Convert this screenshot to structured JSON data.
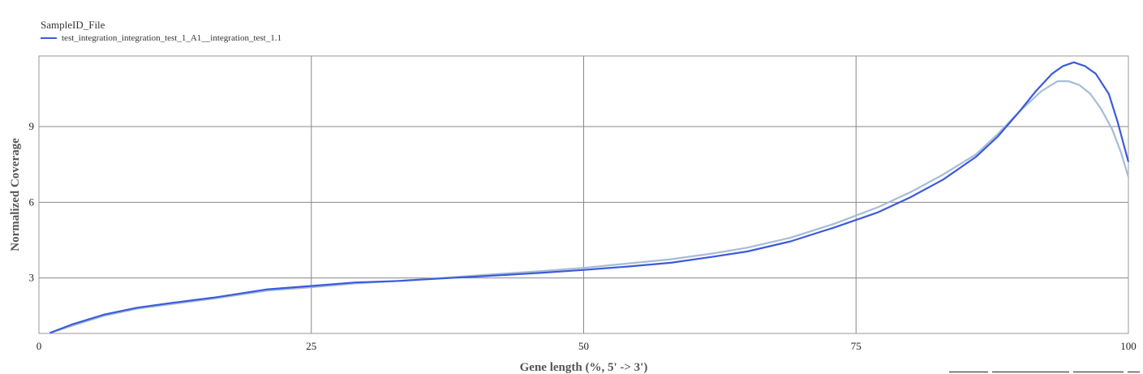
{
  "legend": {
    "title": "SampleID_File",
    "entries": [
      {
        "label": "test_integration_integration_test_1_A1__integration_test_1.1",
        "color": "#3b5bdb"
      }
    ]
  },
  "chart_data": {
    "type": "line",
    "title": "",
    "xlabel": "Gene length (%, 5' -> 3')",
    "ylabel": "Normalized Coverage",
    "xlim": [
      0,
      100
    ],
    "ylim": [
      0.8,
      11.8
    ],
    "xticks": [
      0,
      25,
      50,
      75,
      100
    ],
    "yticks": [
      3,
      6,
      9
    ],
    "grid": true,
    "legend_position": "top-left",
    "series": [
      {
        "name": "test_integration_integration_test_1_A1__integration_test_1.1",
        "color": "#3b5bdb",
        "x": [
          1,
          3,
          6,
          9,
          12,
          16,
          21,
          25,
          29,
          33,
          37,
          42,
          46,
          50,
          54,
          58,
          62,
          65,
          69,
          73,
          77,
          80,
          83,
          86,
          88,
          90,
          91.5,
          93,
          94,
          95,
          96,
          97,
          98.2,
          99,
          100
        ],
        "y": [
          0.82,
          1.15,
          1.55,
          1.82,
          2.0,
          2.22,
          2.55,
          2.68,
          2.82,
          2.88,
          2.98,
          3.1,
          3.2,
          3.32,
          3.45,
          3.6,
          3.85,
          4.05,
          4.45,
          5.0,
          5.6,
          6.2,
          6.9,
          7.8,
          8.6,
          9.6,
          10.4,
          11.1,
          11.4,
          11.55,
          11.4,
          11.1,
          10.3,
          9.2,
          7.6
        ]
      },
      {
        "color": "#a7bcd6",
        "x": [
          1,
          3,
          6,
          9,
          12,
          16,
          21,
          25,
          29,
          33,
          37,
          42,
          46,
          50,
          54,
          58,
          62,
          65,
          69,
          73,
          77,
          80,
          83,
          86,
          88,
          90,
          92,
          93.5,
          94.5,
          95.5,
          96.5,
          97.5,
          98.5,
          99.3,
          100
        ],
        "y": [
          0.82,
          1.1,
          1.5,
          1.78,
          1.95,
          2.18,
          2.5,
          2.63,
          2.78,
          2.88,
          3.0,
          3.15,
          3.27,
          3.4,
          3.57,
          3.74,
          3.98,
          4.2,
          4.6,
          5.15,
          5.8,
          6.4,
          7.1,
          7.9,
          8.7,
          9.6,
          10.4,
          10.8,
          10.8,
          10.65,
          10.3,
          9.7,
          8.9,
          8.0,
          7.0
        ]
      }
    ]
  }
}
